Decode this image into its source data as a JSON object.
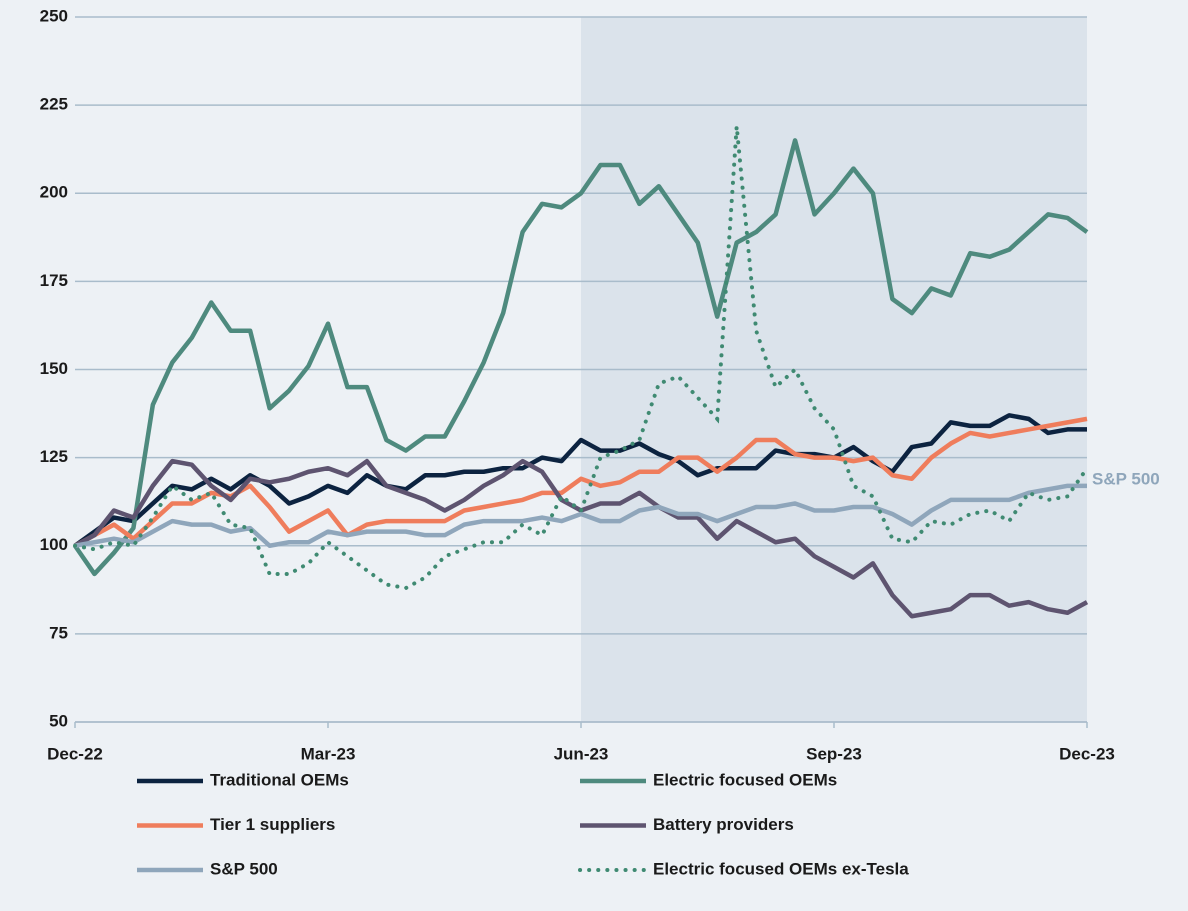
{
  "chart_data": {
    "type": "line",
    "categories": [
      "Dec-22",
      null,
      null,
      null,
      null,
      null,
      null,
      null,
      null,
      null,
      null,
      null,
      null,
      "Mar-23",
      null,
      null,
      null,
      null,
      null,
      null,
      null,
      null,
      null,
      null,
      null,
      null,
      "Jun-23",
      null,
      null,
      null,
      null,
      null,
      null,
      null,
      null,
      null,
      null,
      null,
      null,
      "Sep-23",
      null,
      null,
      null,
      null,
      null,
      null,
      null,
      null,
      null,
      null,
      null,
      null,
      "Dec-23"
    ],
    "ylim": [
      50,
      250
    ],
    "yticks": [
      50,
      75,
      100,
      125,
      150,
      175,
      200,
      225,
      250
    ],
    "grid": true,
    "shade": {
      "from": "Jun-23",
      "to": "Dec-23",
      "color": "#dbe3eb"
    },
    "end_label": "S&P 500",
    "series": [
      {
        "name": "Traditional OEMs",
        "color": "#0c2340",
        "dash": "solid",
        "values": [
          100,
          104,
          108,
          107,
          112,
          117,
          116,
          119,
          116,
          120,
          117,
          112,
          114,
          117,
          115,
          120,
          117,
          116,
          120,
          120,
          121,
          121,
          122,
          122,
          125,
          124,
          130,
          127,
          127,
          129,
          126,
          124,
          120,
          122,
          122,
          122,
          127,
          126,
          126,
          125,
          128,
          124,
          121,
          128,
          129,
          135,
          134,
          134,
          137,
          136,
          132,
          133,
          133
        ]
      },
      {
        "name": "Electric focused OEMs",
        "color": "#4e8a7e",
        "dash": "solid",
        "values": [
          100,
          92,
          98,
          105,
          140,
          152,
          159,
          169,
          161,
          161,
          139,
          144,
          151,
          163,
          145,
          145,
          130,
          127,
          131,
          131,
          141,
          152,
          166,
          189,
          197,
          196,
          200,
          208,
          208,
          197,
          202,
          194,
          186,
          165,
          186,
          189,
          194,
          215,
          194,
          200,
          207,
          200,
          170,
          166,
          173,
          171,
          183,
          182,
          184,
          189,
          194,
          193,
          189
        ]
      },
      {
        "name": "Tier 1 suppliers",
        "color": "#ef7d5c",
        "dash": "solid",
        "values": [
          100,
          103,
          106,
          102,
          107,
          112,
          112,
          115,
          114,
          117,
          111,
          104,
          107,
          110,
          103,
          106,
          107,
          107,
          107,
          107,
          110,
          111,
          112,
          113,
          115,
          115,
          119,
          117,
          118,
          121,
          121,
          125,
          125,
          121,
          125,
          130,
          130,
          126,
          125,
          125,
          124,
          125,
          120,
          119,
          125,
          129,
          132,
          131,
          132,
          133,
          134,
          135,
          136
        ]
      },
      {
        "name": "Battery providers",
        "color": "#5e5470",
        "dash": "solid",
        "values": [
          100,
          103,
          110,
          108,
          117,
          124,
          123,
          117,
          113,
          119,
          118,
          119,
          121,
          122,
          120,
          124,
          117,
          115,
          113,
          110,
          113,
          117,
          120,
          124,
          121,
          113,
          110,
          112,
          112,
          115,
          111,
          108,
          108,
          102,
          107,
          104,
          101,
          102,
          97,
          94,
          91,
          95,
          86,
          80,
          81,
          82,
          86,
          86,
          83,
          84,
          82,
          81,
          84
        ]
      },
      {
        "name": "S&P 500",
        "color": "#8fa6bb",
        "dash": "solid",
        "values": [
          100,
          101,
          102,
          101,
          104,
          107,
          106,
          106,
          104,
          105,
          100,
          101,
          101,
          104,
          103,
          104,
          104,
          104,
          103,
          103,
          106,
          107,
          107,
          107,
          108,
          107,
          109,
          107,
          107,
          110,
          111,
          109,
          109,
          107,
          109,
          111,
          111,
          112,
          110,
          110,
          111,
          111,
          109,
          106,
          110,
          113,
          113,
          113,
          113,
          115,
          116,
          117,
          117
        ]
      },
      {
        "name": "Electric focused OEMs ex-Tesla",
        "color": "#3f8a72",
        "dash": "dotted",
        "values": [
          100,
          99,
          101,
          100,
          108,
          117,
          113,
          115,
          106,
          105,
          92,
          92,
          95,
          101,
          97,
          93,
          89,
          88,
          91,
          97,
          99,
          101,
          101,
          106,
          103,
          114,
          110,
          125,
          127,
          130,
          146,
          148,
          142,
          136,
          219,
          161,
          145,
          150,
          139,
          133,
          117,
          114,
          102,
          101,
          107,
          106,
          109,
          110,
          107,
          115,
          113,
          114,
          122
        ]
      }
    ]
  }
}
